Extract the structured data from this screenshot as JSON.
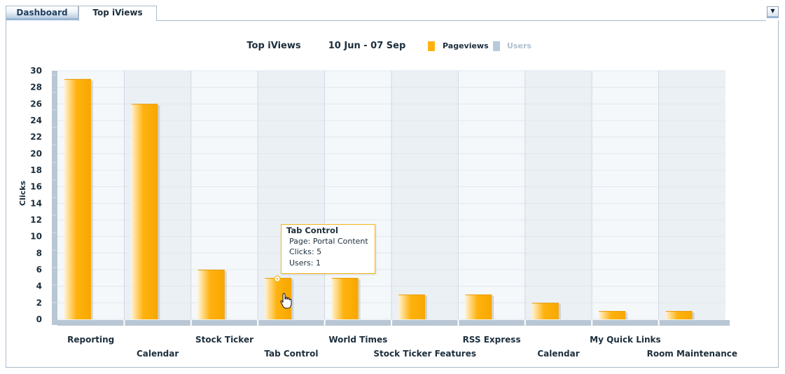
{
  "tabs": [
    {
      "label": "Dashboard",
      "active": false
    },
    {
      "label": "Top iViews",
      "active": true
    }
  ],
  "menu_icon": "dropdown-arrow-icon",
  "chart_header": {
    "title": "Top iViews",
    "date_range": "10 Jun - 07 Sep",
    "legend": [
      {
        "label": "Pageviews",
        "color": "#ffb20f",
        "active": true
      },
      {
        "label": "Users",
        "color": "#b9c9dc",
        "active": false
      }
    ]
  },
  "tooltip": {
    "title": "Tab Control",
    "lines": [
      "Page: Portal Content",
      "Clicks: 5",
      "Users: 1"
    ]
  },
  "colors": {
    "bar": "#ffb20f",
    "axis": "#b9c6d4",
    "plot_bg": "#f5f8fb",
    "alt_band": "#ebf0f5",
    "tooltip_border": "#f5b81a"
  },
  "chart_data": {
    "type": "bar",
    "title": "Top iViews",
    "xlabel": "",
    "ylabel": "Clicks",
    "ylim": [
      0,
      30
    ],
    "yticks": [
      0,
      2,
      4,
      6,
      8,
      10,
      12,
      14,
      16,
      18,
      20,
      22,
      24,
      26,
      28,
      30
    ],
    "grid": true,
    "legend_position": "top",
    "categories": [
      "Reporting",
      "Calendar",
      "Stock Ticker",
      "Tab Control",
      "World Times",
      "Stock Ticker Features",
      "RSS Express",
      "Calendar",
      "My Quick Links",
      "Room Maintenance"
    ],
    "series": [
      {
        "name": "Pageviews",
        "values": [
          29,
          26,
          6,
          5,
          5,
          3,
          3,
          2,
          1,
          1
        ]
      },
      {
        "name": "Users",
        "values": [
          null,
          null,
          null,
          1,
          null,
          null,
          null,
          null,
          null,
          null
        ]
      }
    ]
  }
}
